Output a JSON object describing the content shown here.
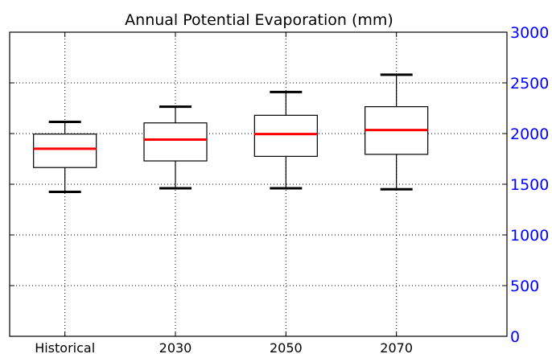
{
  "chart_data": {
    "type": "boxplot",
    "title": "Annual Potential Evaporation (mm)",
    "categories": [
      "Historical",
      "2030",
      "2050",
      "2070"
    ],
    "boxes": [
      {
        "whisker_low": 1425,
        "q1": 1665,
        "median": 1850,
        "q3": 1995,
        "whisker_high": 2115
      },
      {
        "whisker_low": 1460,
        "q1": 1730,
        "median": 1940,
        "q3": 2105,
        "whisker_high": 2265
      },
      {
        "whisker_low": 1460,
        "q1": 1775,
        "median": 1995,
        "q3": 2180,
        "whisker_high": 2410
      },
      {
        "whisker_low": 1450,
        "q1": 1795,
        "median": 2035,
        "q3": 2265,
        "whisker_high": 2580
      }
    ],
    "ylim": [
      0,
      3000
    ],
    "y_ticks": [
      0,
      500,
      1000,
      1500,
      2000,
      2500,
      3000
    ],
    "y_axis_side": "right",
    "grid": true,
    "colors": {
      "box": "#000000",
      "median": "#ff0000",
      "ytick_labels": "#0000ff",
      "grid": "#000000"
    }
  }
}
